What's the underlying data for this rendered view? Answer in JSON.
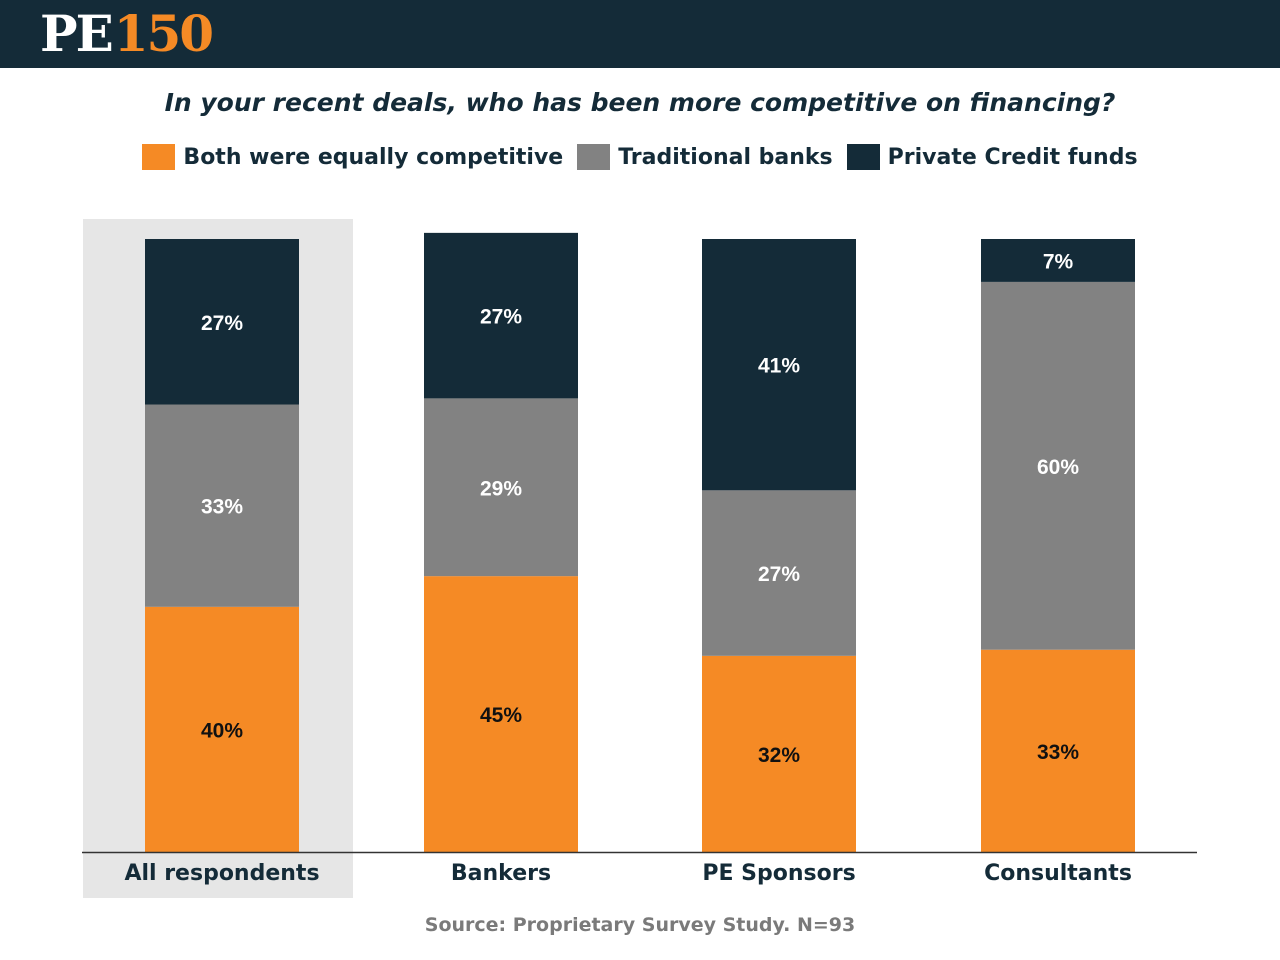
{
  "brand": {
    "logo_pe": "PE",
    "logo_num": "150"
  },
  "chart_data": {
    "type": "bar",
    "stacked": true,
    "title": "In your recent deals, who has been more competitive on financing?",
    "categories": [
      "All respondents",
      "Bankers",
      "PE Sponsors",
      "Consultants"
    ],
    "highlighted_category": "All respondents",
    "series": [
      {
        "name": "Both were equally competitive",
        "color": "#f58a25",
        "label_color": "#111111",
        "values": [
          40,
          45,
          32,
          33
        ],
        "labels": [
          "40%",
          "45%",
          "32%",
          "33%"
        ]
      },
      {
        "name": "Traditional banks",
        "color": "#828282",
        "label_color": "#ffffff",
        "values": [
          33,
          29,
          27,
          60
        ],
        "labels": [
          "33%",
          "29%",
          "27%",
          "60%"
        ]
      },
      {
        "name": "Private Credit funds",
        "color": "#142b38",
        "label_color": "#ffffff",
        "values": [
          27,
          27,
          41,
          7
        ],
        "labels": [
          "27%",
          "27%",
          "41%",
          "7%"
        ]
      }
    ],
    "ylim": [
      0,
      100
    ],
    "xlabel": "",
    "ylabel": "",
    "legend_position": "top-center",
    "grid": false
  },
  "source": "Source:  Proprietary Survey Study. N=93",
  "colors": {
    "header_bg": "#142b38",
    "accent": "#f58a25",
    "highlight_bg": "#e6e6e6"
  }
}
